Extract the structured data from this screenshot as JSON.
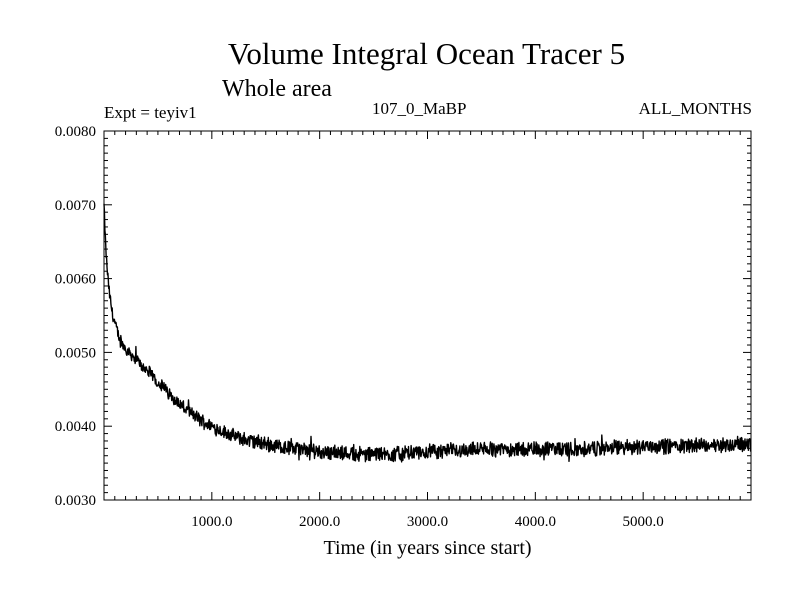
{
  "header": {
    "title": "Volume Integral Ocean Tracer 5",
    "subtitle": "Whole area",
    "experiment": "Expt = teyiv1",
    "run": "107_0_MaBP",
    "months": "ALL_MONTHS"
  },
  "chart_data": {
    "type": "line",
    "title": "Volume Integral Ocean Tracer 5",
    "subtitle": "Whole area",
    "xlabel": "Time (in years since start)",
    "ylabel": "",
    "xlim": [
      0,
      6000
    ],
    "ylim": [
      0.003,
      0.008
    ],
    "x_ticks": [
      1000,
      2000,
      3000,
      4000,
      5000
    ],
    "x_tick_labels": [
      "1000.0",
      "2000.0",
      "3000.0",
      "4000.0",
      "5000.0"
    ],
    "y_ticks": [
      0.003,
      0.004,
      0.005,
      0.006,
      0.007,
      0.008
    ],
    "y_tick_labels": [
      "0.0030",
      "0.0040",
      "0.0050",
      "0.0060",
      "0.0070",
      "0.0080"
    ],
    "grid": false,
    "line_color": "#000000",
    "series": [
      {
        "x": [
          0,
          10,
          25,
          50,
          75,
          100,
          150,
          200,
          250,
          300,
          400,
          500,
          600,
          700,
          800,
          900,
          1000,
          1100,
          1200,
          1300,
          1400,
          1500,
          1600,
          1800,
          2000,
          2200,
          2400,
          2600,
          2800,
          3000,
          3200,
          3400,
          3600,
          3800,
          4000,
          4200,
          4400,
          4600,
          4800,
          5000,
          5200,
          5400,
          5600,
          5800,
          6000
        ],
        "y": [
          0.007,
          0.0066,
          0.0062,
          0.0058,
          0.00555,
          0.0054,
          0.00515,
          0.00505,
          0.00498,
          0.0049,
          0.00475,
          0.0046,
          0.00445,
          0.0043,
          0.00418,
          0.00408,
          0.004,
          0.00393,
          0.00387,
          0.00382,
          0.00379,
          0.00376,
          0.00373,
          0.00369,
          0.00366,
          0.00364,
          0.00362,
          0.00362,
          0.00363,
          0.00365,
          0.00367,
          0.00368,
          0.00369,
          0.00369,
          0.00369,
          0.00369,
          0.00369,
          0.0037,
          0.00371,
          0.00373,
          0.00373,
          0.00374,
          0.00374,
          0.00375,
          0.00376
        ]
      }
    ]
  }
}
